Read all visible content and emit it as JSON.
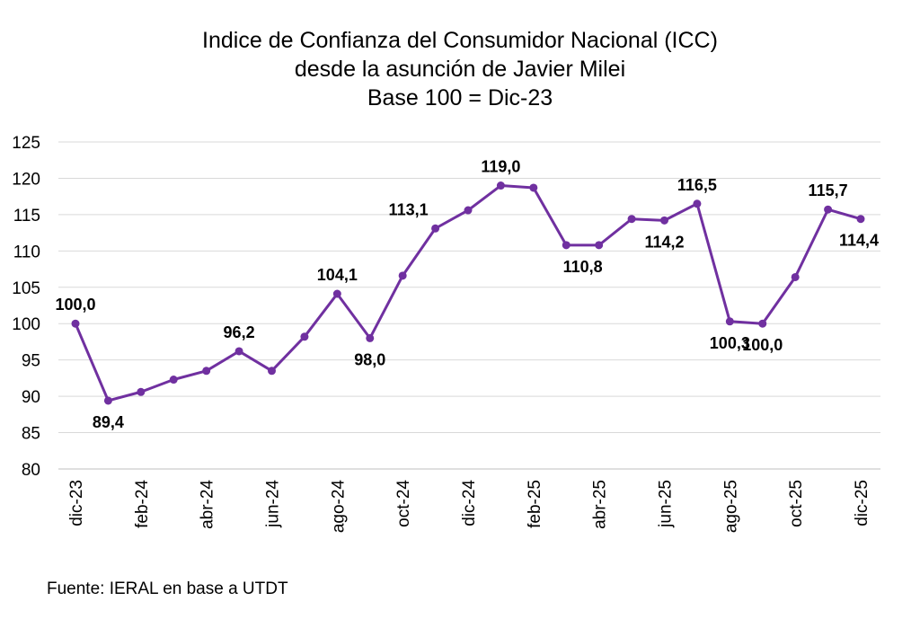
{
  "chart_data": {
    "type": "line",
    "title": [
      "Indice de Confianza del Consumidor Nacional (ICC)",
      "desde la asunción de Javier Milei",
      "Base 100 = Dic-23"
    ],
    "xlabel": "",
    "ylabel": "",
    "ylim": [
      80,
      125
    ],
    "yticks": [
      80,
      85,
      90,
      95,
      100,
      105,
      110,
      115,
      120,
      125
    ],
    "grid": true,
    "legend": "none",
    "x": [
      "dic-23",
      "ene-24",
      "feb-24",
      "mar-24",
      "abr-24",
      "may-24",
      "jun-24",
      "jul-24",
      "ago-24",
      "sep-24",
      "oct-24",
      "nov-24",
      "dic-24",
      "ene-25",
      "feb-25",
      "mar-25",
      "abr-25",
      "may-25",
      "jun-25",
      "jul-25",
      "ago-25",
      "sep-25",
      "oct-25",
      "nov-25",
      "dic-25"
    ],
    "xtick_labels": [
      "dic-23",
      "feb-24",
      "abr-24",
      "jun-24",
      "ago-24",
      "oct-24",
      "dic-24",
      "feb-25",
      "abr-25",
      "jun-25",
      "ago-25",
      "oct-25",
      "dic-25"
    ],
    "series": [
      {
        "name": "ICC",
        "color": "#7030A0",
        "values": [
          100.0,
          89.4,
          90.6,
          92.3,
          93.5,
          96.2,
          93.5,
          98.2,
          104.1,
          98.0,
          106.6,
          113.1,
          115.6,
          119.0,
          118.7,
          110.8,
          110.8,
          114.4,
          114.2,
          116.5,
          100.3,
          100.0,
          106.4,
          115.7,
          114.4
        ]
      }
    ],
    "data_labels": [
      {
        "index": 0,
        "text": "100,0",
        "pos": "above"
      },
      {
        "index": 1,
        "text": "89,4",
        "pos": "below"
      },
      {
        "index": 5,
        "text": "96,2",
        "pos": "above"
      },
      {
        "index": 8,
        "text": "104,1",
        "pos": "above"
      },
      {
        "index": 9,
        "text": "98,0",
        "pos": "below"
      },
      {
        "index": 11,
        "text": "113,1",
        "pos": "above-left"
      },
      {
        "index": 13,
        "text": "119,0",
        "pos": "above"
      },
      {
        "index": 16,
        "text": "110,8",
        "pos": "below-mid"
      },
      {
        "index": 18,
        "text": "114,2",
        "pos": "below"
      },
      {
        "index": 19,
        "text": "116,5",
        "pos": "above"
      },
      {
        "index": 20,
        "text": "100,3",
        "pos": "below"
      },
      {
        "index": 21,
        "text": "100,0",
        "pos": "below"
      },
      {
        "index": 23,
        "text": "115,7",
        "pos": "above"
      },
      {
        "index": 24,
        "text": "114,4",
        "pos": "below"
      }
    ]
  },
  "source": "Fuente: IERAL en base a UTDT"
}
